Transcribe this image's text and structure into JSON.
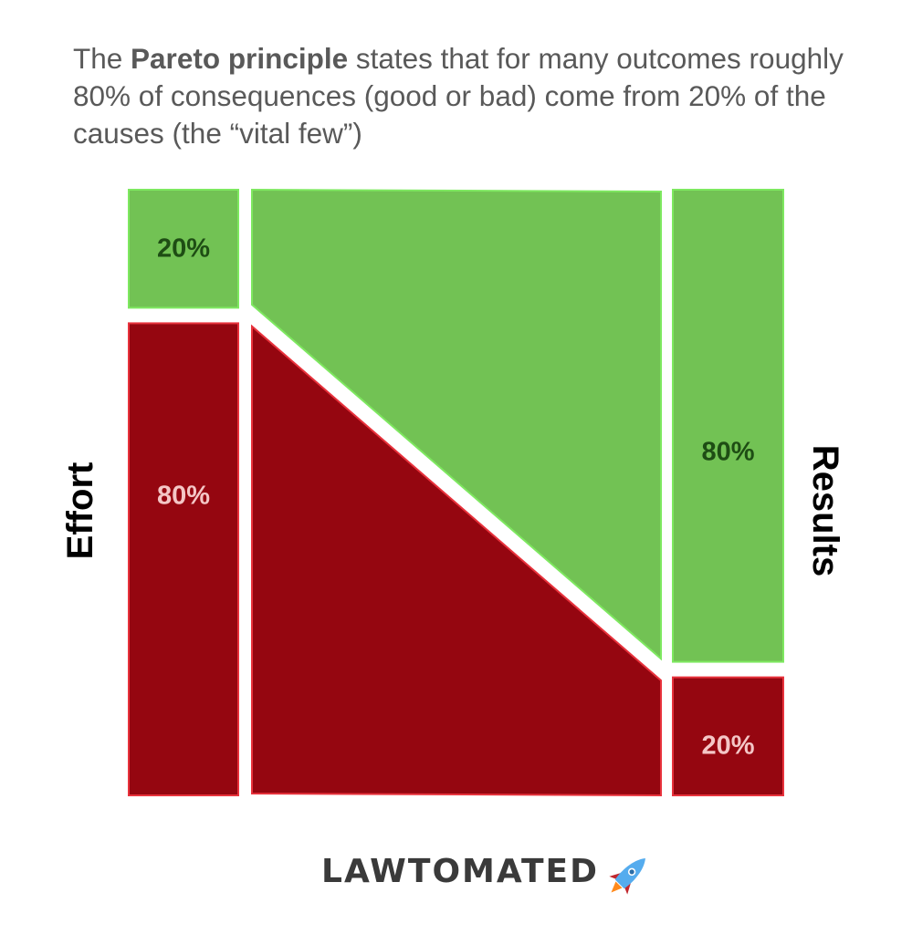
{
  "intro": {
    "prefix": "The ",
    "highlight": "Pareto principle",
    "suffix": " states that for many outcomes roughly 80% of consequences (good or bad) come from 20% of the causes (the “vital few”)"
  },
  "effort": {
    "axis_label": "Effort",
    "top_share": 20,
    "top_label": "20%",
    "bottom_share": 80,
    "bottom_label": "80%"
  },
  "results": {
    "axis_label": "Results",
    "top_share": 80,
    "top_label": "80%",
    "bottom_share": 20,
    "bottom_label": "20%"
  },
  "colors": {
    "good_fill": "#72c254",
    "good_stroke": "#7ee860",
    "good_text": "#1e4d14",
    "bad_fill": "#950610",
    "bad_stroke": "#e8323c",
    "bad_text": "#f4c6c6",
    "text": "#595959",
    "brand": "#3a3a3a",
    "rocket_body": "#55acee"
  },
  "brand": {
    "name": "LAWTOMATED",
    "icon": "rocket-icon"
  }
}
